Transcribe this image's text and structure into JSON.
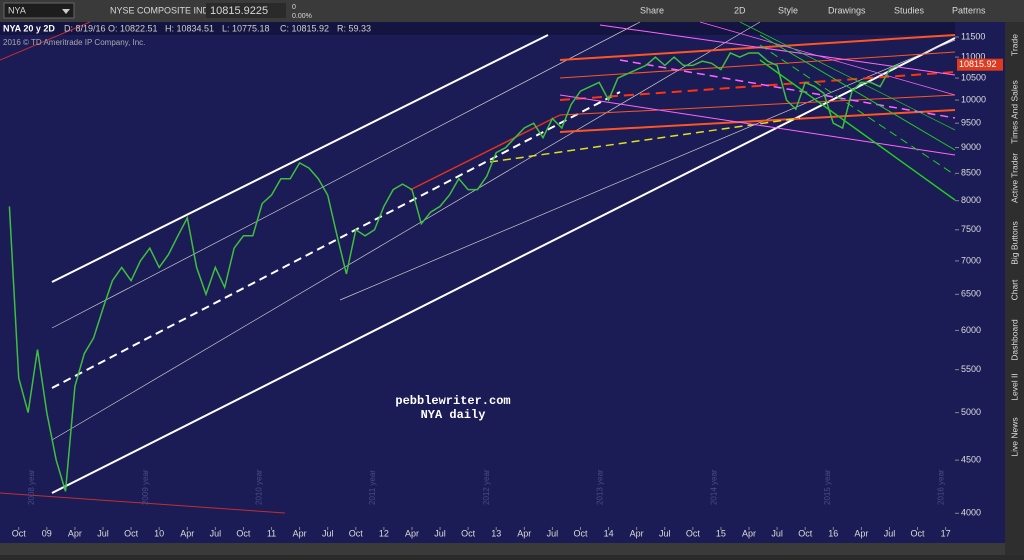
{
  "toolbar": {
    "symbol": "NYA",
    "description": "NYSE COMPOSITE INDEX",
    "last": "10815.9225",
    "change": "0",
    "change_pct": "0.00%",
    "buttons": [
      "Share",
      "2D",
      "Style",
      "Drawings",
      "Studies",
      "Patterns"
    ]
  },
  "header": {
    "study": "NYA 20 y 2D",
    "date": "D: 8/19/16",
    "open": "O: 10822.51",
    "high": "H: 10834.51",
    "low": "L: 10775.18",
    "close": "C: 10815.92",
    "range": "R: 59.33",
    "copyright": "2016 © TD Ameritrade IP Company, Inc."
  },
  "sidebar": [
    "Trade",
    "Times And Sales",
    "Active Trader",
    "Big Buttons",
    "Chart",
    "Dashboard",
    "Level II",
    "Live News"
  ],
  "chart_data": {
    "type": "line",
    "log_scale": true,
    "color": "#3fbf3f",
    "annotations": [
      "pebblewriter.com",
      "NYA daily"
    ],
    "period_labels": [
      "2008 year",
      "2009 year",
      "2010 year",
      "2011 year",
      "2012 year",
      "2013 year",
      "2014 year",
      "2015 year",
      "2016 year"
    ],
    "last_price": 10815.92,
    "ylim": [
      3880,
      11890
    ],
    "yticks": [
      4000,
      4500,
      5000,
      5500,
      6000,
      6500,
      7000,
      7500,
      8000,
      8500,
      9000,
      9500,
      10000,
      10500,
      11000,
      11500
    ],
    "xlim": [
      "2008-08",
      "2017-02"
    ],
    "xticks": [
      {
        "value": "2008-10",
        "label": "Oct"
      },
      {
        "value": "2009-01",
        "label": "09"
      },
      {
        "value": "2009-04",
        "label": "Apr"
      },
      {
        "value": "2009-07",
        "label": "Jul"
      },
      {
        "value": "2009-10",
        "label": "Oct"
      },
      {
        "value": "2010-01",
        "label": "10"
      },
      {
        "value": "2010-04",
        "label": "Apr"
      },
      {
        "value": "2010-07",
        "label": "Jul"
      },
      {
        "value": "2010-10",
        "label": "Oct"
      },
      {
        "value": "2011-01",
        "label": "11"
      },
      {
        "value": "2011-04",
        "label": "Apr"
      },
      {
        "value": "2011-07",
        "label": "Jul"
      },
      {
        "value": "2011-10",
        "label": "Oct"
      },
      {
        "value": "2012-01",
        "label": "12"
      },
      {
        "value": "2012-04",
        "label": "Apr"
      },
      {
        "value": "2012-07",
        "label": "Jul"
      },
      {
        "value": "2012-10",
        "label": "Oct"
      },
      {
        "value": "2013-01",
        "label": "13"
      },
      {
        "value": "2013-04",
        "label": "Apr"
      },
      {
        "value": "2013-07",
        "label": "Jul"
      },
      {
        "value": "2013-10",
        "label": "Oct"
      },
      {
        "value": "2014-01",
        "label": "14"
      },
      {
        "value": "2014-04",
        "label": "Apr"
      },
      {
        "value": "2014-07",
        "label": "Jul"
      },
      {
        "value": "2014-10",
        "label": "Oct"
      },
      {
        "value": "2015-01",
        "label": "15"
      },
      {
        "value": "2015-04",
        "label": "Apr"
      },
      {
        "value": "2015-07",
        "label": "Jul"
      },
      {
        "value": "2015-10",
        "label": "Oct"
      },
      {
        "value": "2016-01",
        "label": "16"
      },
      {
        "value": "2016-04",
        "label": "Apr"
      },
      {
        "value": "2016-07",
        "label": "Jul"
      },
      {
        "value": "2016-10",
        "label": "Oct"
      },
      {
        "value": "2017-01",
        "label": "17"
      }
    ],
    "x": [
      "2008-09",
      "2008-10",
      "2008-11",
      "2008-12",
      "2009-01",
      "2009-02",
      "2009-03",
      "2009-04",
      "2009-05",
      "2009-06",
      "2009-07",
      "2009-08",
      "2009-09",
      "2009-10",
      "2009-11",
      "2009-12",
      "2010-01",
      "2010-02",
      "2010-03",
      "2010-04",
      "2010-05",
      "2010-06",
      "2010-07",
      "2010-08",
      "2010-09",
      "2010-10",
      "2010-11",
      "2010-12",
      "2011-01",
      "2011-02",
      "2011-03",
      "2011-04",
      "2011-05",
      "2011-06",
      "2011-07",
      "2011-08",
      "2011-09",
      "2011-10",
      "2011-11",
      "2011-12",
      "2012-01",
      "2012-02",
      "2012-03",
      "2012-04",
      "2012-05",
      "2012-06",
      "2012-07",
      "2012-08",
      "2012-09",
      "2012-10",
      "2012-11",
      "2012-12",
      "2013-01",
      "2013-02",
      "2013-03",
      "2013-04",
      "2013-05",
      "2013-06",
      "2013-07",
      "2013-08",
      "2013-09",
      "2013-10",
      "2013-11",
      "2013-12",
      "2014-01",
      "2014-02",
      "2014-03",
      "2014-04",
      "2014-05",
      "2014-06",
      "2014-07",
      "2014-08",
      "2014-09",
      "2014-10",
      "2014-11",
      "2014-12",
      "2015-01",
      "2015-02",
      "2015-03",
      "2015-04",
      "2015-05",
      "2015-06",
      "2015-07",
      "2015-08",
      "2015-09",
      "2015-10",
      "2015-11",
      "2015-12",
      "2016-01",
      "2016-02",
      "2016-03",
      "2016-04",
      "2016-05",
      "2016-06",
      "2016-07",
      "2016-08"
    ],
    "values": [
      7900,
      5400,
      5000,
      5750,
      5000,
      4500,
      4200,
      5300,
      5700,
      5900,
      6300,
      6700,
      6900,
      6700,
      7000,
      7200,
      6900,
      7100,
      7400,
      7700,
      6900,
      6500,
      6900,
      6600,
      7200,
      7400,
      7400,
      7950,
      8100,
      8400,
      8400,
      8700,
      8600,
      8400,
      8100,
      7400,
      6800,
      7500,
      7400,
      7500,
      7900,
      8200,
      8300,
      8200,
      7600,
      7800,
      7900,
      8100,
      8400,
      8200,
      8200,
      8450,
      8900,
      9000,
      9200,
      9400,
      9500,
      9200,
      9600,
      9400,
      9900,
      10200,
      10300,
      10400,
      10000,
      10500,
      10600,
      10700,
      10800,
      11000,
      10800,
      11000,
      10800,
      10800,
      10900,
      10850,
      10700,
      11100,
      11000,
      11100,
      11100,
      10900,
      10800,
      10000,
      9800,
      10400,
      10300,
      10150,
      9500,
      9400,
      10200,
      10400,
      10400,
      10300,
      10700,
      10816
    ]
  }
}
